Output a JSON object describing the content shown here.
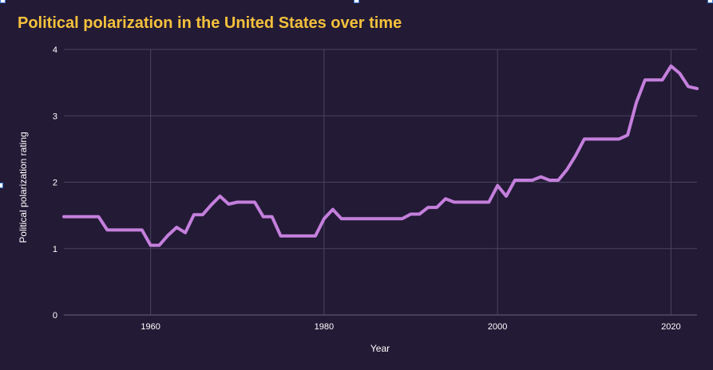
{
  "colors": {
    "background": "#231a36",
    "title": "#f5c13c",
    "line": "#c47fdc",
    "grid": "#4b4360",
    "text": "#ffffff"
  },
  "chart_data": {
    "type": "line",
    "title": "Political polarization in the United States over time",
    "xlabel": "Year",
    "ylabel": "Political polarization rating",
    "xlim": [
      1950,
      2023
    ],
    "ylim": [
      0,
      4
    ],
    "x_ticks": [
      1960,
      1980,
      2000,
      2020
    ],
    "y_ticks": [
      0,
      1,
      2,
      3,
      4
    ],
    "grid": true,
    "legend": "none",
    "series": [
      {
        "x": [
          1950,
          1951,
          1952,
          1953,
          1954,
          1955,
          1956,
          1957,
          1958,
          1959,
          1960,
          1961,
          1962,
          1963,
          1964,
          1965,
          1966,
          1967,
          1968,
          1969,
          1970,
          1971,
          1972,
          1973,
          1974,
          1975,
          1976,
          1977,
          1978,
          1979,
          1980,
          1981,
          1982,
          1983,
          1984,
          1985,
          1986,
          1987,
          1988,
          1989,
          1990,
          1991,
          1992,
          1993,
          1994,
          1995,
          1996,
          1997,
          1998,
          1999,
          2000,
          2001,
          2002,
          2003,
          2004,
          2005,
          2006,
          2007,
          2008,
          2009,
          2010,
          2011,
          2012,
          2013,
          2014,
          2015,
          2016,
          2017,
          2018,
          2019,
          2020,
          2021,
          2022,
          2023
        ],
        "y": [
          1.48,
          1.48,
          1.48,
          1.48,
          1.48,
          1.28,
          1.28,
          1.28,
          1.28,
          1.28,
          1.05,
          1.05,
          1.2,
          1.32,
          1.24,
          1.51,
          1.51,
          1.66,
          1.79,
          1.67,
          1.7,
          1.7,
          1.7,
          1.48,
          1.48,
          1.19,
          1.19,
          1.19,
          1.19,
          1.19,
          1.45,
          1.59,
          1.45,
          1.45,
          1.45,
          1.45,
          1.45,
          1.45,
          1.45,
          1.45,
          1.52,
          1.52,
          1.62,
          1.62,
          1.75,
          1.7,
          1.7,
          1.7,
          1.7,
          1.7,
          1.95,
          1.79,
          2.03,
          2.03,
          2.03,
          2.08,
          2.03,
          2.03,
          2.19,
          2.4,
          2.65,
          2.65,
          2.65,
          2.65,
          2.65,
          2.71,
          3.2,
          3.54,
          3.54,
          3.54,
          3.75,
          3.64,
          3.44,
          3.41
        ]
      }
    ]
  }
}
